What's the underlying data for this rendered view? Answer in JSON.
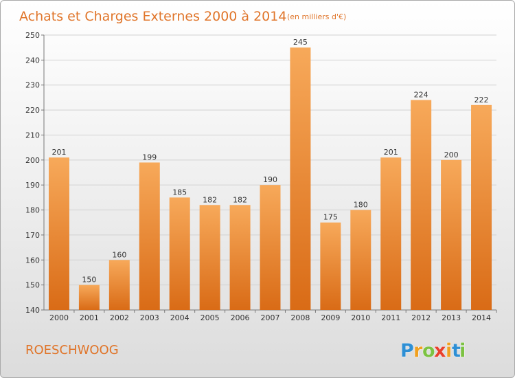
{
  "title": "Achats et Charges Externes 2000 à 2014",
  "unit_note": "(en milliers d'€)",
  "commune": "ROESCHWOOG",
  "brand": {
    "letters": [
      "P",
      "r",
      "o",
      "x",
      "i",
      "t",
      "i"
    ],
    "colors": [
      "#2e8fd4",
      "#f0a020",
      "#7cc242",
      "#e8402c",
      "#f0a020",
      "#2e8fd4",
      "#7cc242"
    ]
  },
  "colors": {
    "bar_light": "#f7a95a",
    "bar_dark": "#d96b16",
    "accent": "#e0752a"
  },
  "chart_data": {
    "type": "bar",
    "categories": [
      "2000",
      "2001",
      "2002",
      "2003",
      "2004",
      "2005",
      "2006",
      "2007",
      "2008",
      "2009",
      "2010",
      "2011",
      "2012",
      "2013",
      "2014"
    ],
    "values": [
      201,
      150,
      160,
      199,
      185,
      182,
      182,
      190,
      245,
      175,
      180,
      201,
      224,
      200,
      222
    ],
    "title": "Achats et Charges Externes 2000 à 2014",
    "xlabel": "",
    "ylabel": "",
    "ylim": [
      140,
      250
    ],
    "yticks": [
      140,
      150,
      160,
      170,
      180,
      190,
      200,
      210,
      220,
      230,
      240,
      250
    ],
    "grid": true,
    "data_labels": true
  }
}
